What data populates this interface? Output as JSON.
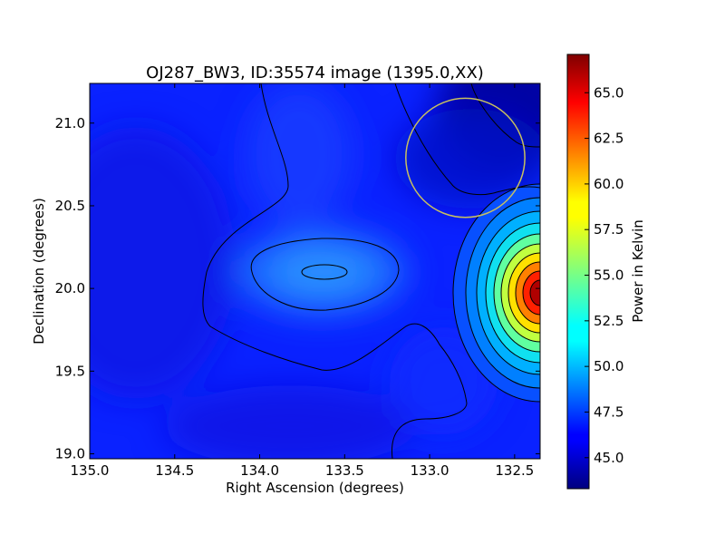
{
  "chart_data": {
    "type": "heatmap",
    "title": "OJ287_BW3, ID:35574 image (1395.0,XX)",
    "xlabel": "Right Ascension (degrees)",
    "ylabel": "Declination (degrees)",
    "xlim": [
      135.0,
      132.35
    ],
    "ylim": [
      18.97,
      21.24
    ],
    "x_ticks": [
      "135.0",
      "134.5",
      "134.0",
      "133.5",
      "133.0",
      "132.5"
    ],
    "y_ticks": [
      "19.0",
      "19.5",
      "20.0",
      "20.5",
      "21.0"
    ],
    "colorbar": {
      "label": "Power in Kelvin",
      "range": [
        43.3,
        67.1
      ],
      "ticks": [
        "45.0",
        "47.5",
        "50.0",
        "52.5",
        "55.0",
        "57.5",
        "60.0",
        "62.5",
        "65.0"
      ],
      "colormap": "jet"
    },
    "features": [
      {
        "kind": "peak",
        "ra": 132.35,
        "dec": 19.98,
        "value": 67.0
      },
      {
        "kind": "local-max",
        "ra": 133.64,
        "dec": 20.1,
        "value": 49.5
      },
      {
        "kind": "minimum",
        "ra": 132.5,
        "dec": 21.2,
        "value": 43.4
      }
    ],
    "beam_circle": {
      "ra": 132.79,
      "dec": 20.79,
      "radius_deg": 0.36,
      "color": "#c8c060"
    }
  }
}
